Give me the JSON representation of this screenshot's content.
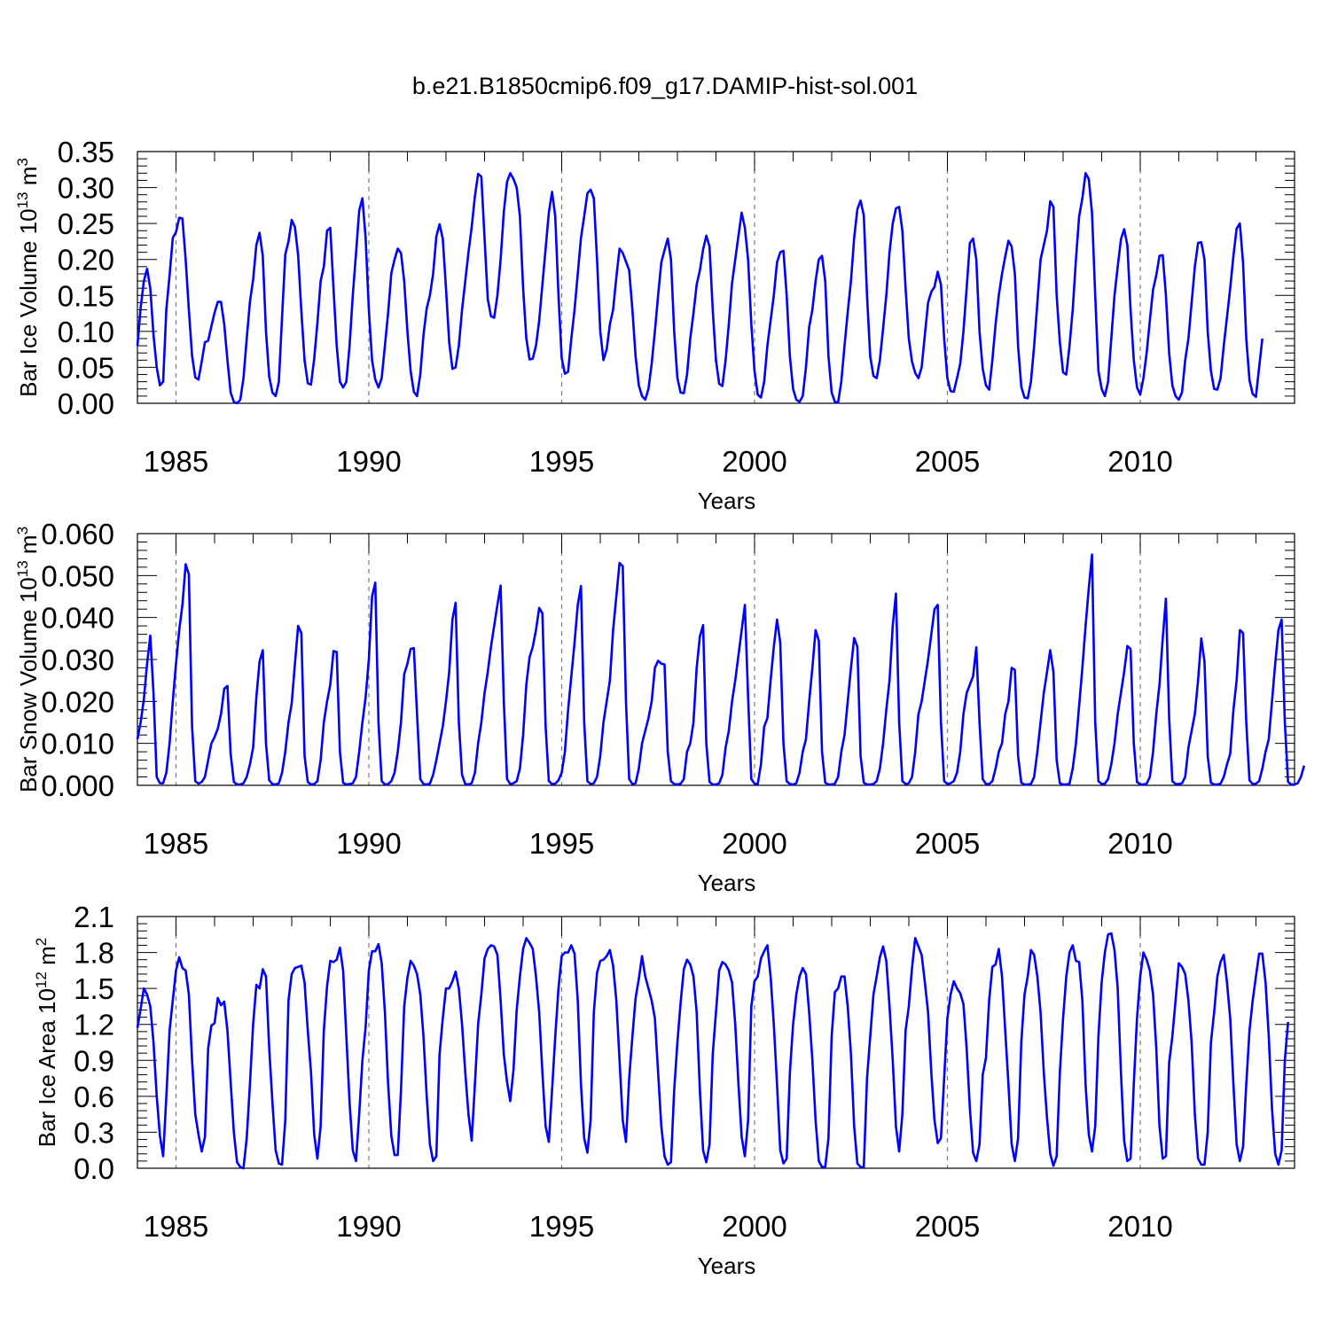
{
  "title": "b.e21.B1850cmip6.f09_g17.DAMIP-hist-sol.001",
  "chart_data": [
    {
      "type": "line",
      "ylabel": {
        "main": "Bar Ice Volume 10",
        "exp": "13",
        "unit": " m",
        "unit_exp": "3"
      },
      "xlabel": "Years",
      "xlim": [
        1984.0,
        2014.0
      ],
      "ylim": [
        0.0,
        0.35
      ],
      "y_ticks": [
        0.0,
        0.05,
        0.1,
        0.15,
        0.2,
        0.25,
        0.3,
        0.35
      ],
      "y_tick_labels": [
        "0.00",
        "0.05",
        "0.10",
        "0.15",
        "0.20",
        "0.25",
        "0.30",
        "0.35"
      ],
      "x_ticks": [
        1985,
        1990,
        1995,
        2000,
        2005,
        2010
      ],
      "x_tick_labels": [
        "1985",
        "1990",
        "1995",
        "2000",
        "2005",
        "2010"
      ],
      "dashed_reference_years": [
        1985,
        1990,
        1995,
        2000,
        2005,
        2010
      ],
      "grid": false,
      "color": "#0000ff",
      "start_year": 1984.0,
      "step": 0.08333,
      "y": [
        0.08,
        0.133,
        0.17,
        0.187,
        0.16,
        0.095,
        0.05,
        0.025,
        0.03,
        0.131,
        0.178,
        0.23,
        0.238,
        0.258,
        0.257,
        0.2,
        0.13,
        0.066,
        0.036,
        0.033,
        0.058,
        0.085,
        0.087,
        0.107,
        0.126,
        0.141,
        0.141,
        0.11,
        0.06,
        0.015,
        0.002,
        0.0,
        0.005,
        0.035,
        0.09,
        0.141,
        0.172,
        0.22,
        0.237,
        0.205,
        0.1,
        0.037,
        0.015,
        0.01,
        0.03,
        0.12,
        0.207,
        0.225,
        0.255,
        0.245,
        0.206,
        0.128,
        0.06,
        0.028,
        0.026,
        0.062,
        0.112,
        0.17,
        0.19,
        0.24,
        0.244,
        0.16,
        0.08,
        0.03,
        0.022,
        0.03,
        0.08,
        0.15,
        0.208,
        0.268,
        0.285,
        0.23,
        0.13,
        0.06,
        0.033,
        0.022,
        0.035,
        0.08,
        0.126,
        0.181,
        0.2,
        0.215,
        0.209,
        0.17,
        0.1,
        0.045,
        0.016,
        0.01,
        0.04,
        0.095,
        0.132,
        0.15,
        0.18,
        0.232,
        0.249,
        0.229,
        0.16,
        0.085,
        0.048,
        0.05,
        0.08,
        0.13,
        0.17,
        0.21,
        0.245,
        0.288,
        0.319,
        0.315,
        0.23,
        0.145,
        0.121,
        0.119,
        0.15,
        0.2,
        0.266,
        0.308,
        0.32,
        0.312,
        0.3,
        0.26,
        0.16,
        0.09,
        0.061,
        0.062,
        0.08,
        0.115,
        0.165,
        0.215,
        0.265,
        0.294,
        0.26,
        0.15,
        0.063,
        0.041,
        0.044,
        0.09,
        0.13,
        0.18,
        0.23,
        0.26,
        0.292,
        0.297,
        0.285,
        0.2,
        0.1,
        0.06,
        0.075,
        0.11,
        0.13,
        0.175,
        0.215,
        0.209,
        0.197,
        0.185,
        0.13,
        0.065,
        0.025,
        0.01,
        0.005,
        0.02,
        0.055,
        0.1,
        0.15,
        0.196,
        0.213,
        0.229,
        0.2,
        0.1,
        0.035,
        0.015,
        0.014,
        0.04,
        0.09,
        0.125,
        0.165,
        0.185,
        0.214,
        0.233,
        0.218,
        0.13,
        0.06,
        0.027,
        0.024,
        0.06,
        0.11,
        0.167,
        0.2,
        0.233,
        0.265,
        0.244,
        0.2,
        0.11,
        0.045,
        0.012,
        0.008,
        0.03,
        0.08,
        0.115,
        0.15,
        0.196,
        0.21,
        0.212,
        0.15,
        0.065,
        0.02,
        0.005,
        0.002,
        0.01,
        0.05,
        0.106,
        0.13,
        0.17,
        0.2,
        0.205,
        0.17,
        0.066,
        0.015,
        0.002,
        0.001,
        0.03,
        0.08,
        0.127,
        0.17,
        0.23,
        0.27,
        0.282,
        0.261,
        0.15,
        0.065,
        0.038,
        0.035,
        0.06,
        0.104,
        0.15,
        0.21,
        0.25,
        0.271,
        0.273,
        0.24,
        0.16,
        0.09,
        0.058,
        0.042,
        0.035,
        0.05,
        0.095,
        0.14,
        0.155,
        0.162,
        0.183,
        0.165,
        0.09,
        0.035,
        0.017,
        0.016,
        0.035,
        0.055,
        0.1,
        0.16,
        0.223,
        0.229,
        0.2,
        0.1,
        0.048,
        0.025,
        0.019,
        0.06,
        0.11,
        0.15,
        0.18,
        0.204,
        0.226,
        0.218,
        0.18,
        0.08,
        0.023,
        0.008,
        0.007,
        0.03,
        0.08,
        0.14,
        0.2,
        0.22,
        0.24,
        0.281,
        0.273,
        0.15,
        0.085,
        0.043,
        0.04,
        0.08,
        0.13,
        0.2,
        0.26,
        0.285,
        0.32,
        0.312,
        0.265,
        0.15,
        0.045,
        0.02,
        0.01,
        0.03,
        0.09,
        0.15,
        0.19,
        0.228,
        0.242,
        0.22,
        0.13,
        0.06,
        0.022,
        0.012,
        0.035,
        0.07,
        0.115,
        0.158,
        0.178,
        0.205,
        0.206,
        0.15,
        0.07,
        0.025,
        0.01,
        0.005,
        0.015,
        0.06,
        0.09,
        0.14,
        0.19,
        0.223,
        0.224,
        0.2,
        0.1,
        0.045,
        0.02,
        0.019,
        0.035,
        0.08,
        0.12,
        0.16,
        0.205,
        0.243,
        0.25,
        0.195,
        0.09,
        0.032,
        0.013,
        0.009,
        0.05,
        0.09
      ]
    },
    {
      "type": "line",
      "ylabel": {
        "main": "Bar Snow Volume 10",
        "exp": "13",
        "unit": " m",
        "unit_exp": "3"
      },
      "xlabel": "Years",
      "xlim": [
        1984.0,
        2014.0
      ],
      "ylim": [
        0.0,
        0.06
      ],
      "y_ticks": [
        0.0,
        0.01,
        0.02,
        0.03,
        0.04,
        0.05,
        0.06
      ],
      "y_tick_labels": [
        "0.000",
        "0.010",
        "0.020",
        "0.030",
        "0.040",
        "0.050",
        "0.060"
      ],
      "x_ticks": [
        1985,
        1990,
        1995,
        2000,
        2005,
        2010
      ],
      "x_tick_labels": [
        "1985",
        "1990",
        "1995",
        "2000",
        "2005",
        "2010"
      ],
      "dashed_reference_years": [
        1985,
        1990,
        1995,
        2000,
        2005,
        2010
      ],
      "grid": false,
      "color": "#0000ff",
      "start_year": 1984.0,
      "step": 0.08333,
      "y": [
        0.011,
        0.015,
        0.0205,
        0.029,
        0.0357,
        0.022,
        0.002,
        0.0005,
        0.0005,
        0.003,
        0.01,
        0.02,
        0.029,
        0.037,
        0.043,
        0.0527,
        0.0503,
        0.014,
        0.001,
        0.0004,
        0.0008,
        0.002,
        0.006,
        0.01,
        0.0115,
        0.0135,
        0.017,
        0.023,
        0.0237,
        0.0075,
        0.0008,
        0.0002,
        0.0002,
        0.0005,
        0.002,
        0.005,
        0.009,
        0.021,
        0.0295,
        0.0322,
        0.01,
        0.0012,
        0.0003,
        0.0002,
        0.0005,
        0.003,
        0.008,
        0.015,
        0.0195,
        0.029,
        0.038,
        0.0363,
        0.007,
        0.0008,
        0.0002,
        0.0003,
        0.001,
        0.006,
        0.015,
        0.02,
        0.024,
        0.032,
        0.0318,
        0.008,
        0.0006,
        0.0002,
        0.0003,
        0.0005,
        0.002,
        0.008,
        0.015,
        0.021,
        0.03,
        0.045,
        0.0483,
        0.015,
        0.001,
        0.0002,
        0.0003,
        0.001,
        0.003,
        0.008,
        0.015,
        0.0265,
        0.029,
        0.0325,
        0.0327,
        0.017,
        0.0015,
        0.0003,
        0.0002,
        0.0004,
        0.0025,
        0.006,
        0.01,
        0.014,
        0.02,
        0.027,
        0.0395,
        0.0435,
        0.015,
        0.0025,
        0.0003,
        0.0002,
        0.0005,
        0.003,
        0.01,
        0.015,
        0.022,
        0.027,
        0.033,
        0.038,
        0.043,
        0.0476,
        0.02,
        0.0015,
        0.0003,
        0.0005,
        0.001,
        0.004,
        0.012,
        0.024,
        0.0305,
        0.033,
        0.037,
        0.0423,
        0.041,
        0.014,
        0.001,
        0.0003,
        0.0004,
        0.0012,
        0.003,
        0.008,
        0.018,
        0.026,
        0.034,
        0.043,
        0.0475,
        0.015,
        0.001,
        0.0003,
        0.0005,
        0.002,
        0.007,
        0.015,
        0.02,
        0.025,
        0.037,
        0.045,
        0.053,
        0.0522,
        0.02,
        0.0015,
        0.0003,
        0.0005,
        0.004,
        0.01,
        0.013,
        0.016,
        0.02,
        0.028,
        0.0297,
        0.029,
        0.0288,
        0.008,
        0.001,
        0.0003,
        0.0002,
        0.0004,
        0.0015,
        0.008,
        0.01,
        0.015,
        0.028,
        0.0355,
        0.0382,
        0.01,
        0.0008,
        0.0002,
        0.0002,
        0.0005,
        0.0025,
        0.009,
        0.013,
        0.02,
        0.025,
        0.031,
        0.037,
        0.043,
        0.021,
        0.0015,
        0.0004,
        0.0003,
        0.005,
        0.014,
        0.016,
        0.025,
        0.033,
        0.0395,
        0.034,
        0.01,
        0.001,
        0.0003,
        0.0002,
        0.0005,
        0.003,
        0.008,
        0.011,
        0.02,
        0.028,
        0.037,
        0.0345,
        0.008,
        0.0006,
        0.0002,
        0.0002,
        0.0004,
        0.002,
        0.008,
        0.012,
        0.02,
        0.028,
        0.0351,
        0.033,
        0.007,
        0.0006,
        0.0002,
        0.0002,
        0.0003,
        0.001,
        0.004,
        0.01,
        0.018,
        0.025,
        0.038,
        0.0457,
        0.015,
        0.001,
        0.0003,
        0.0005,
        0.002,
        0.008,
        0.017,
        0.02,
        0.025,
        0.03,
        0.036,
        0.042,
        0.043,
        0.015,
        0.001,
        0.0003,
        0.0005,
        0.001,
        0.003,
        0.008,
        0.017,
        0.022,
        0.024,
        0.026,
        0.0329,
        0.015,
        0.0015,
        0.0003,
        0.0003,
        0.001,
        0.004,
        0.008,
        0.01,
        0.017,
        0.02,
        0.028,
        0.0275,
        0.007,
        0.0006,
        0.0002,
        0.0002,
        0.0003,
        0.002,
        0.008,
        0.015,
        0.022,
        0.027,
        0.0322,
        0.027,
        0.006,
        0.0005,
        0.0002,
        0.0002,
        0.0004,
        0.004,
        0.01,
        0.019,
        0.028,
        0.038,
        0.047,
        0.055,
        0.015,
        0.001,
        0.0003,
        0.0004,
        0.0015,
        0.005,
        0.01,
        0.017,
        0.022,
        0.027,
        0.0332,
        0.0325,
        0.01,
        0.0008,
        0.0002,
        0.0002,
        0.0004,
        0.002,
        0.008,
        0.017,
        0.024,
        0.035,
        0.0445,
        0.016,
        0.001,
        0.0003,
        0.0003,
        0.0005,
        0.002,
        0.009,
        0.013,
        0.017,
        0.025,
        0.035,
        0.0295,
        0.007,
        0.0006,
        0.0002,
        0.0002,
        0.0004,
        0.002,
        0.005,
        0.0075,
        0.018,
        0.025,
        0.037,
        0.0363,
        0.015,
        0.0012,
        0.0003,
        0.0004,
        0.001,
        0.004,
        0.008,
        0.011,
        0.02,
        0.029,
        0.037,
        0.0395,
        0.015,
        0.0008,
        0.0002,
        0.0002,
        0.0005,
        0.002,
        0.0047
      ]
    },
    {
      "type": "line",
      "ylabel": {
        "main": "Bar Ice Area 10",
        "exp": "12",
        "unit": " m",
        "unit_exp": "2"
      },
      "xlabel": "Years",
      "xlim": [
        1984.0,
        2014.0
      ],
      "ylim": [
        0.0,
        2.1
      ],
      "y_ticks": [
        0.0,
        0.3,
        0.6,
        0.9,
        1.2,
        1.5,
        1.8,
        2.1
      ],
      "y_tick_labels": [
        "0.0",
        "0.3",
        "0.6",
        "0.9",
        "1.2",
        "1.5",
        "1.8",
        "2.1"
      ],
      "x_ticks": [
        1985,
        1990,
        1995,
        2000,
        2005,
        2010
      ],
      "x_tick_labels": [
        "1985",
        "1990",
        "1995",
        "2000",
        "2005",
        "2010"
      ],
      "dashed_reference_years": [
        1985,
        1990,
        1995,
        2000,
        2005,
        2010
      ],
      "grid": false,
      "color": "#0000ff",
      "start_year": 1984.0,
      "step": 0.08333,
      "y": [
        1.17,
        1.33,
        1.5,
        1.45,
        1.35,
        1.05,
        0.6,
        0.27,
        0.1,
        0.6,
        1.15,
        1.4,
        1.65,
        1.76,
        1.67,
        1.65,
        1.45,
        0.9,
        0.45,
        0.28,
        0.14,
        0.26,
        1.0,
        1.19,
        1.21,
        1.42,
        1.36,
        1.39,
        1.15,
        0.72,
        0.3,
        0.05,
        0.01,
        0.0,
        0.25,
        0.7,
        1.2,
        1.53,
        1.5,
        1.66,
        1.6,
        1.0,
        0.55,
        0.15,
        0.04,
        0.03,
        0.4,
        1.4,
        1.62,
        1.67,
        1.68,
        1.69,
        1.55,
        1.15,
        0.8,
        0.28,
        0.08,
        0.35,
        1.15,
        1.52,
        1.73,
        1.72,
        1.74,
        1.84,
        1.65,
        1.1,
        0.55,
        0.15,
        0.06,
        0.45,
        0.9,
        1.18,
        1.65,
        1.81,
        1.81,
        1.87,
        1.71,
        1.3,
        0.7,
        0.27,
        0.11,
        0.11,
        0.65,
        1.35,
        1.59,
        1.73,
        1.69,
        1.62,
        1.45,
        1.1,
        0.6,
        0.2,
        0.06,
        0.1,
        0.95,
        1.25,
        1.5,
        1.5,
        1.56,
        1.64,
        1.5,
        1.2,
        0.8,
        0.45,
        0.23,
        0.7,
        1.2,
        1.45,
        1.75,
        1.83,
        1.86,
        1.85,
        1.78,
        1.4,
        0.95,
        0.72,
        0.56,
        0.82,
        1.32,
        1.6,
        1.83,
        1.92,
        1.88,
        1.83,
        1.6,
        1.3,
        0.8,
        0.35,
        0.22,
        0.65,
        1.1,
        1.5,
        1.77,
        1.8,
        1.8,
        1.86,
        1.79,
        1.4,
        0.7,
        0.25,
        0.13,
        0.4,
        1.3,
        1.63,
        1.73,
        1.74,
        1.77,
        1.82,
        1.69,
        1.4,
        0.9,
        0.4,
        0.22,
        0.75,
        1.1,
        1.42,
        1.58,
        1.77,
        1.6,
        1.5,
        1.4,
        1.25,
        0.8,
        0.35,
        0.1,
        0.03,
        0.05,
        0.65,
        1.05,
        1.38,
        1.66,
        1.74,
        1.7,
        1.6,
        1.3,
        0.65,
        0.15,
        0.05,
        0.2,
        0.95,
        1.3,
        1.65,
        1.72,
        1.7,
        1.65,
        1.55,
        1.2,
        0.7,
        0.26,
        0.1,
        0.4,
        1.35,
        1.56,
        1.6,
        1.75,
        1.81,
        1.86,
        1.6,
        1.2,
        0.7,
        0.15,
        0.04,
        0.08,
        0.8,
        1.2,
        1.45,
        1.6,
        1.67,
        1.62,
        1.3,
        0.9,
        0.4,
        0.06,
        0.01,
        0.01,
        0.25,
        1.1,
        1.47,
        1.5,
        1.6,
        1.6,
        1.35,
        0.95,
        0.35,
        0.04,
        0.01,
        0.01,
        0.75,
        1.1,
        1.45,
        1.6,
        1.76,
        1.85,
        1.73,
        1.35,
        0.9,
        0.35,
        0.14,
        0.45,
        1.15,
        1.35,
        1.67,
        1.92,
        1.85,
        1.78,
        1.55,
        1.3,
        0.8,
        0.4,
        0.21,
        0.25,
        0.75,
        1.25,
        1.45,
        1.56,
        1.5,
        1.46,
        1.37,
        1.0,
        0.5,
        0.13,
        0.06,
        0.2,
        0.78,
        0.92,
        1.4,
        1.68,
        1.7,
        1.83,
        1.6,
        1.15,
        0.7,
        0.2,
        0.06,
        0.25,
        1.05,
        1.45,
        1.6,
        1.82,
        1.78,
        1.6,
        1.3,
        0.8,
        0.42,
        0.12,
        0.02,
        0.1,
        0.8,
        1.25,
        1.6,
        1.8,
        1.86,
        1.73,
        1.72,
        1.4,
        0.7,
        0.28,
        0.14,
        0.35,
        1.1,
        1.55,
        1.8,
        1.95,
        1.96,
        1.82,
        1.5,
        0.8,
        0.23,
        0.06,
        0.08,
        0.7,
        1.25,
        1.6,
        1.8,
        1.74,
        1.65,
        1.45,
        1.0,
        0.35,
        0.08,
        0.1,
        0.88,
        1.1,
        1.4,
        1.71,
        1.68,
        1.62,
        1.4,
        1.05,
        0.45,
        0.08,
        0.03,
        0.03,
        0.3,
        1.05,
        1.3,
        1.6,
        1.72,
        1.78,
        1.55,
        1.25,
        0.7,
        0.2,
        0.06,
        0.18,
        0.7,
        1.15,
        1.4,
        1.6,
        1.79,
        1.79,
        1.55,
        1.1,
        0.5,
        0.12,
        0.03,
        0.15,
        0.9,
        1.22
      ]
    }
  ]
}
